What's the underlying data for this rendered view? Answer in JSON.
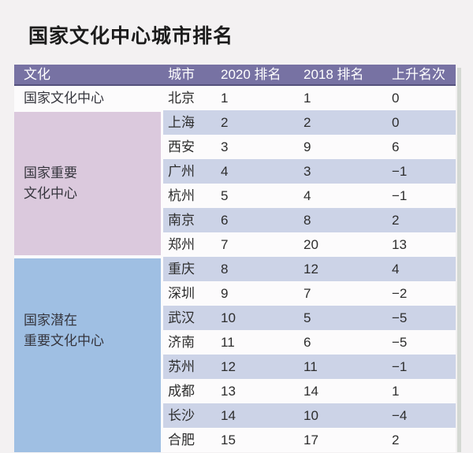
{
  "page": {
    "title": "国家文化中心城市排名"
  },
  "table": {
    "headers": {
      "culture": "文化",
      "city": "城市",
      "rank2020": "2020 排名",
      "rank2018": "2018 排名",
      "change": "上升名次"
    },
    "sections": [
      {
        "name": "national-cultural-center",
        "lines": [
          "国家文化中心",
          ""
        ]
      },
      {
        "name": "national-important-cultural-center",
        "lines": [
          "国家重要",
          "文化中心"
        ]
      },
      {
        "name": "national-potential-important-cultural-center",
        "lines": [
          "国家潜在",
          "重要文化中心"
        ]
      }
    ],
    "rows": [
      {
        "city": "北京",
        "rank2020": "1",
        "rank2018": "1",
        "change": "0"
      },
      {
        "city": "上海",
        "rank2020": "2",
        "rank2018": "2",
        "change": "0"
      },
      {
        "city": "西安",
        "rank2020": "3",
        "rank2018": "9",
        "change": "6"
      },
      {
        "city": "广州",
        "rank2020": "4",
        "rank2018": "3",
        "change": "−1"
      },
      {
        "city": "杭州",
        "rank2020": "5",
        "rank2018": "4",
        "change": "−1"
      },
      {
        "city": "南京",
        "rank2020": "6",
        "rank2018": "8",
        "change": "2"
      },
      {
        "city": "郑州",
        "rank2020": "7",
        "rank2018": "20",
        "change": "13"
      },
      {
        "city": "重庆",
        "rank2020": "8",
        "rank2018": "12",
        "change": "4"
      },
      {
        "city": "深圳",
        "rank2020": "9",
        "rank2018": "7",
        "change": "−2"
      },
      {
        "city": "武汉",
        "rank2020": "10",
        "rank2018": "5",
        "change": "−5"
      },
      {
        "city": "济南",
        "rank2020": "11",
        "rank2018": "6",
        "change": "−5"
      },
      {
        "city": "苏州",
        "rank2020": "12",
        "rank2018": "11",
        "change": "−1"
      },
      {
        "city": "成都",
        "rank2020": "13",
        "rank2018": "14",
        "change": "1"
      },
      {
        "city": "长沙",
        "rank2020": "14",
        "rank2018": "10",
        "change": "−4"
      },
      {
        "city": "合肥",
        "rank2020": "15",
        "rank2018": "17",
        "change": "2"
      }
    ]
  },
  "colors": {
    "page_bg": "#f3f1f2",
    "header_bg": "#7772a3",
    "header_border": "#55517d",
    "row_white": "#fcfbfc",
    "row_alt": "#ccd3e7",
    "section_important": "#dbc9dd",
    "section_potential": "#9fbfe3",
    "edge_shadow": "#c3cbc2"
  },
  "chart_data": {
    "type": "table",
    "title": "国家文化中心城市排名",
    "columns": [
      "文化",
      "城市",
      "2020 排名",
      "2018 排名",
      "上升名次"
    ],
    "rows": [
      [
        "国家文化中心",
        "北京",
        1,
        1,
        0
      ],
      [
        "国家重要文化中心",
        "上海",
        2,
        2,
        0
      ],
      [
        "国家重要文化中心",
        "西安",
        3,
        9,
        6
      ],
      [
        "国家重要文化中心",
        "广州",
        4,
        3,
        -1
      ],
      [
        "国家重要文化中心",
        "杭州",
        5,
        4,
        -1
      ],
      [
        "国家重要文化中心",
        "南京",
        6,
        8,
        2
      ],
      [
        "国家重要文化中心",
        "郑州",
        7,
        20,
        13
      ],
      [
        "国家潜在重要文化中心",
        "重庆",
        8,
        12,
        4
      ],
      [
        "国家潜在重要文化中心",
        "深圳",
        9,
        7,
        -2
      ],
      [
        "国家潜在重要文化中心",
        "武汉",
        10,
        5,
        -5
      ],
      [
        "国家潜在重要文化中心",
        "济南",
        11,
        6,
        -5
      ],
      [
        "国家潜在重要文化中心",
        "苏州",
        12,
        11,
        -1
      ],
      [
        "国家潜在重要文化中心",
        "成都",
        13,
        14,
        1
      ],
      [
        "国家潜在重要文化中心",
        "长沙",
        14,
        10,
        -4
      ],
      [
        "国家潜在重要文化中心",
        "合肥",
        15,
        17,
        2
      ]
    ],
    "legend_position": "none",
    "grid": false
  }
}
